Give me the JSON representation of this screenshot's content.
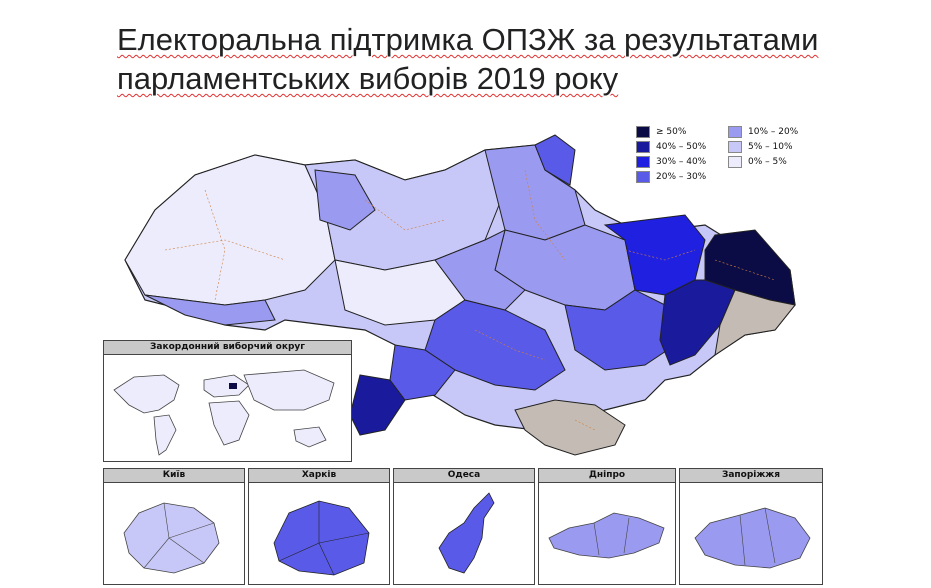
{
  "title": {
    "line1": "Електоральна підтримка ОПЗЖ за результатами",
    "line2": "парламентських виборів 2019 року"
  },
  "legend": [
    {
      "label": "≥ 50%",
      "color": "#0b0b45"
    },
    {
      "label": "40% – 50%",
      "color": "#1a1a9c"
    },
    {
      "label": "30% – 40%",
      "color": "#2020e0"
    },
    {
      "label": "20% – 30%",
      "color": "#5a5ae8"
    },
    {
      "label": "10% – 20%",
      "color": "#9a9af0"
    },
    {
      "label": "5% – 10%",
      "color": "#c8c8f8"
    },
    {
      "label": "0% – 5%",
      "color": "#ececfc"
    }
  ],
  "colors": {
    "no_data": "#c4bcb4",
    "district_border": "#d08040",
    "region_border": "#222222"
  },
  "panels": {
    "abroad": {
      "label": "Закордонний виборчий округ"
    },
    "insets": [
      {
        "label": "Київ"
      },
      {
        "label": "Харків"
      },
      {
        "label": "Одеса"
      },
      {
        "label": "Дніпро"
      },
      {
        "label": "Запоріжжя"
      }
    ]
  }
}
